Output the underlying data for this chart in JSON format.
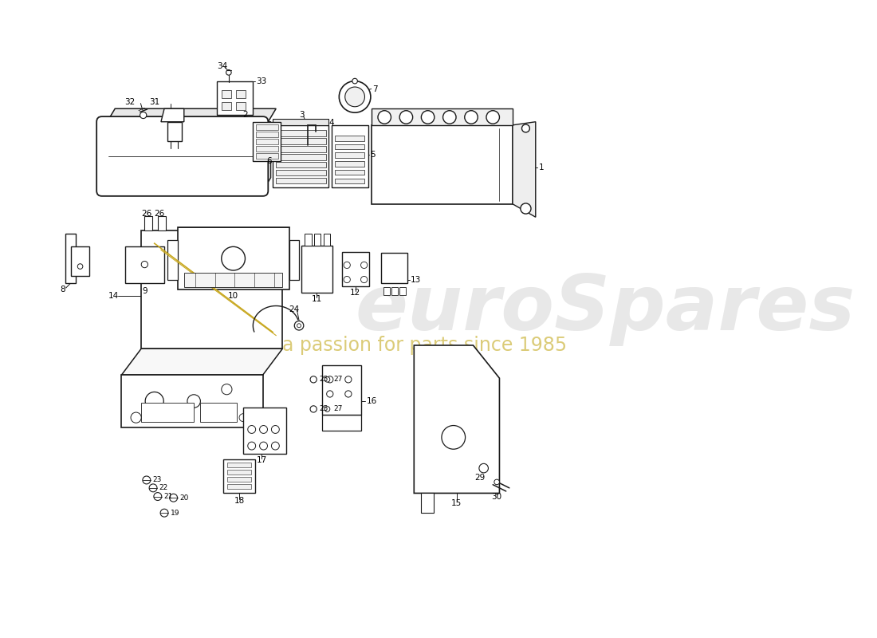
{
  "bg_color": "#ffffff",
  "lc": "#1a1a1a",
  "lw": 1.0,
  "wm1": "euroSpares",
  "wm1_color": "#cccccc",
  "wm1_alpha": 0.45,
  "wm1_size": 70,
  "wm2": "a passion for parts since 1985",
  "wm2_color": "#c8b030",
  "wm2_alpha": 0.65,
  "wm2_size": 17,
  "fig_w": 11.0,
  "fig_h": 8.0,
  "dpi": 100
}
